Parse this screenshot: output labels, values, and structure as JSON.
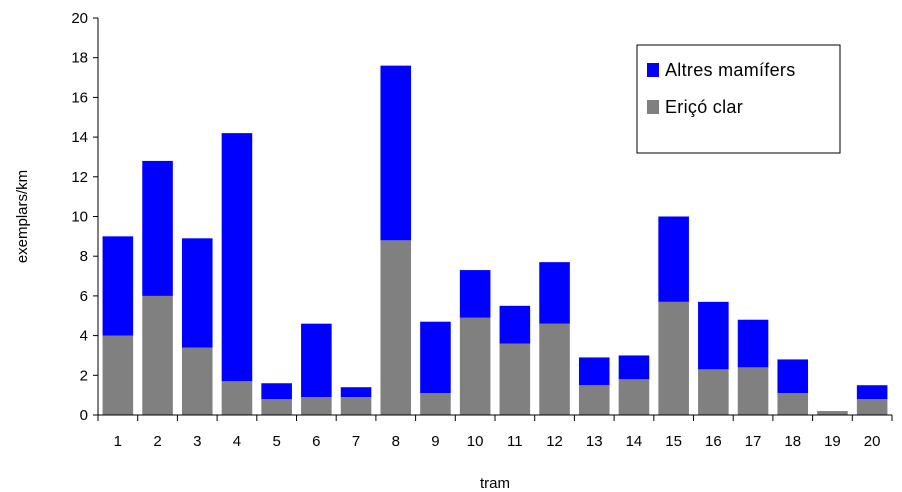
{
  "chart_data": {
    "type": "bar",
    "stacked": true,
    "categories": [
      "1",
      "2",
      "3",
      "4",
      "5",
      "6",
      "7",
      "8",
      "9",
      "10",
      "11",
      "12",
      "13",
      "14",
      "15",
      "16",
      "17",
      "18",
      "19",
      "20"
    ],
    "series": [
      {
        "name": "Eriçó clar",
        "color": "#808080",
        "values": [
          4.0,
          6.0,
          3.4,
          1.7,
          0.8,
          0.9,
          0.9,
          8.8,
          1.1,
          4.9,
          3.6,
          4.6,
          1.5,
          1.8,
          5.7,
          2.3,
          2.4,
          1.1,
          0.2,
          0.8
        ]
      },
      {
        "name": "Altres mamífers",
        "color": "#0000ff",
        "values": [
          5.0,
          6.8,
          5.5,
          12.5,
          0.8,
          3.7,
          0.5,
          8.8,
          3.6,
          2.4,
          1.9,
          3.1,
          1.4,
          1.2,
          4.3,
          3.4,
          2.4,
          1.7,
          0.0,
          0.7
        ]
      }
    ],
    "xlabel": "tram",
    "ylabel": "exemplars/km",
    "ylim": [
      0,
      20
    ],
    "yticks": [
      0,
      2,
      4,
      6,
      8,
      10,
      12,
      14,
      16,
      18,
      20
    ],
    "grid": false,
    "legend": {
      "placement": "top-right",
      "order": [
        "Altres mamífers",
        "Eriçó clar"
      ]
    }
  }
}
